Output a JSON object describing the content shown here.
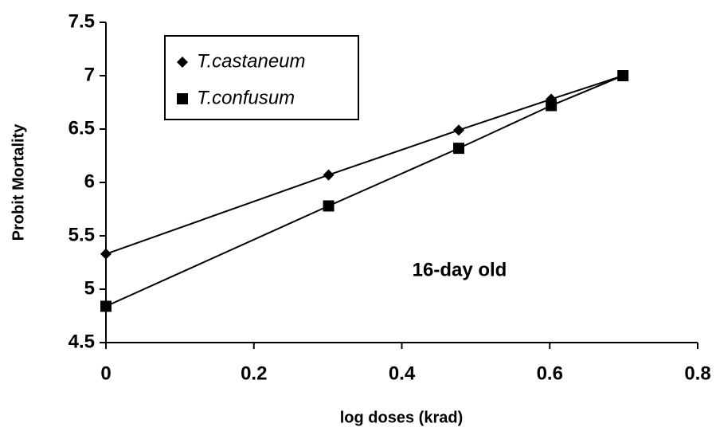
{
  "chart_data": {
    "type": "line",
    "x_label": "log doses (krad)",
    "y_label": "Probit Mortality",
    "annotation": "16-day old",
    "x": [
      0,
      0.301,
      0.477,
      0.602,
      0.699
    ],
    "series": [
      {
        "name": "T.castaneum",
        "color": "#000000",
        "marker": "diamond",
        "values": [
          5.33,
          6.07,
          6.49,
          6.78,
          7.0
        ]
      },
      {
        "name": "T.confusum",
        "color": "#000000",
        "marker": "square",
        "values": [
          4.84,
          5.78,
          6.32,
          6.72,
          7.0
        ]
      }
    ],
    "xlim": [
      0,
      0.8
    ],
    "xticks": [
      0,
      0.2,
      0.4,
      0.6,
      0.8
    ],
    "ylim": [
      4.5,
      7.5
    ],
    "yticks": [
      4.5,
      5,
      5.5,
      6,
      6.5,
      7,
      7.5
    ],
    "grid": false,
    "legend": "upper left"
  }
}
